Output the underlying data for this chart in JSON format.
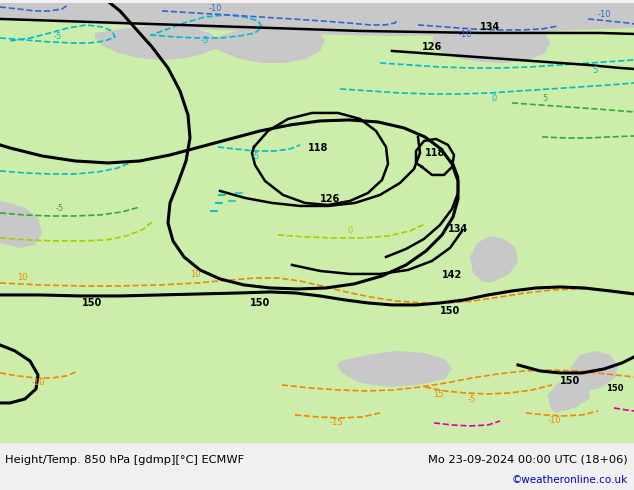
{
  "title_left": "Height/Temp. 850 hPa [gdmp][°C] ECMWF",
  "title_right": "Mo 23-09-2024 00:00 UTC (18+06)",
  "copyright": "©weatheronline.co.uk",
  "bg_color": "#c8c8c8",
  "land_color": "#cceeaa",
  "contour_black": "#000000",
  "contour_cyan": "#00bbcc",
  "contour_blue": "#3366cc",
  "contour_green": "#33aa33",
  "contour_ygreen": "#aacc00",
  "contour_orange": "#ee8800",
  "contour_magenta": "#dd00aa",
  "bar_color": "#f0f0f0",
  "copyright_color": "#0000cc"
}
